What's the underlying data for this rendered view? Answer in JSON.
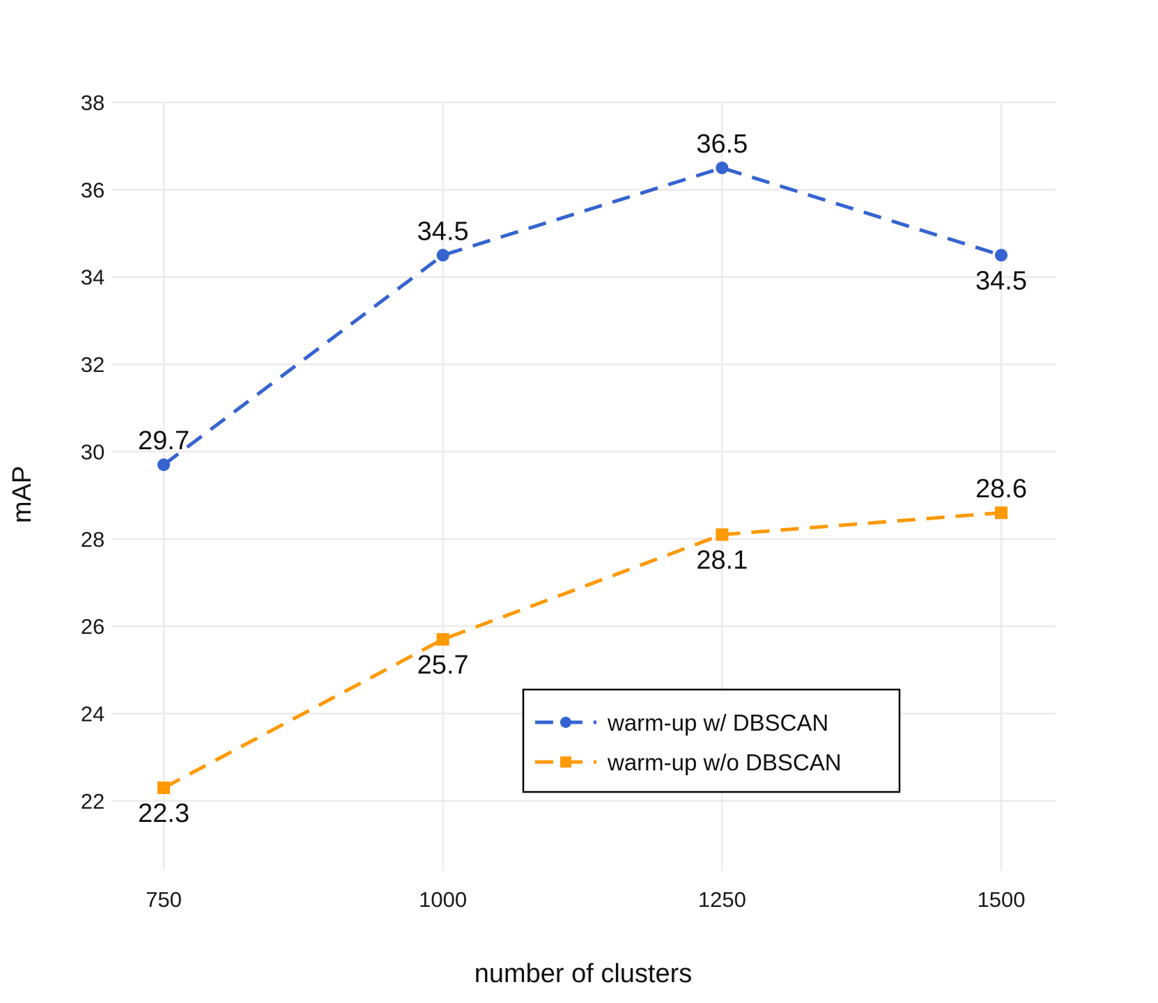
{
  "chart_data": {
    "type": "line",
    "title": "",
    "xlabel": "number of clusters",
    "ylabel": "mAP",
    "x": [
      750,
      1000,
      1250,
      1500
    ],
    "x_ticks": [
      "750",
      "1000",
      "1250",
      "1500"
    ],
    "y_ticks": [
      "22",
      "24",
      "26",
      "28",
      "30",
      "32",
      "34",
      "36",
      "38"
    ],
    "ylim": [
      21.2,
      38
    ],
    "grid": true,
    "legend_position": "bottom-right",
    "series": [
      {
        "name": "warm-up w/ DBSCAN",
        "color": "#3563d0",
        "marker": "circle",
        "line_style": "dashed",
        "values": [
          29.7,
          34.5,
          36.5,
          34.5
        ],
        "labels": [
          "29.7",
          "34.5",
          "36.5",
          "34.5"
        ],
        "label_side": [
          "above",
          "above",
          "above",
          "below"
        ]
      },
      {
        "name": "warm-up w/o DBSCAN",
        "color": "#ff9900",
        "marker": "square",
        "line_style": "dashed",
        "values": [
          22.3,
          25.7,
          28.1,
          28.6
        ],
        "labels": [
          "22.3",
          "25.7",
          "28.1",
          "28.6"
        ],
        "label_side": [
          "below",
          "below",
          "below",
          "above"
        ]
      }
    ]
  }
}
